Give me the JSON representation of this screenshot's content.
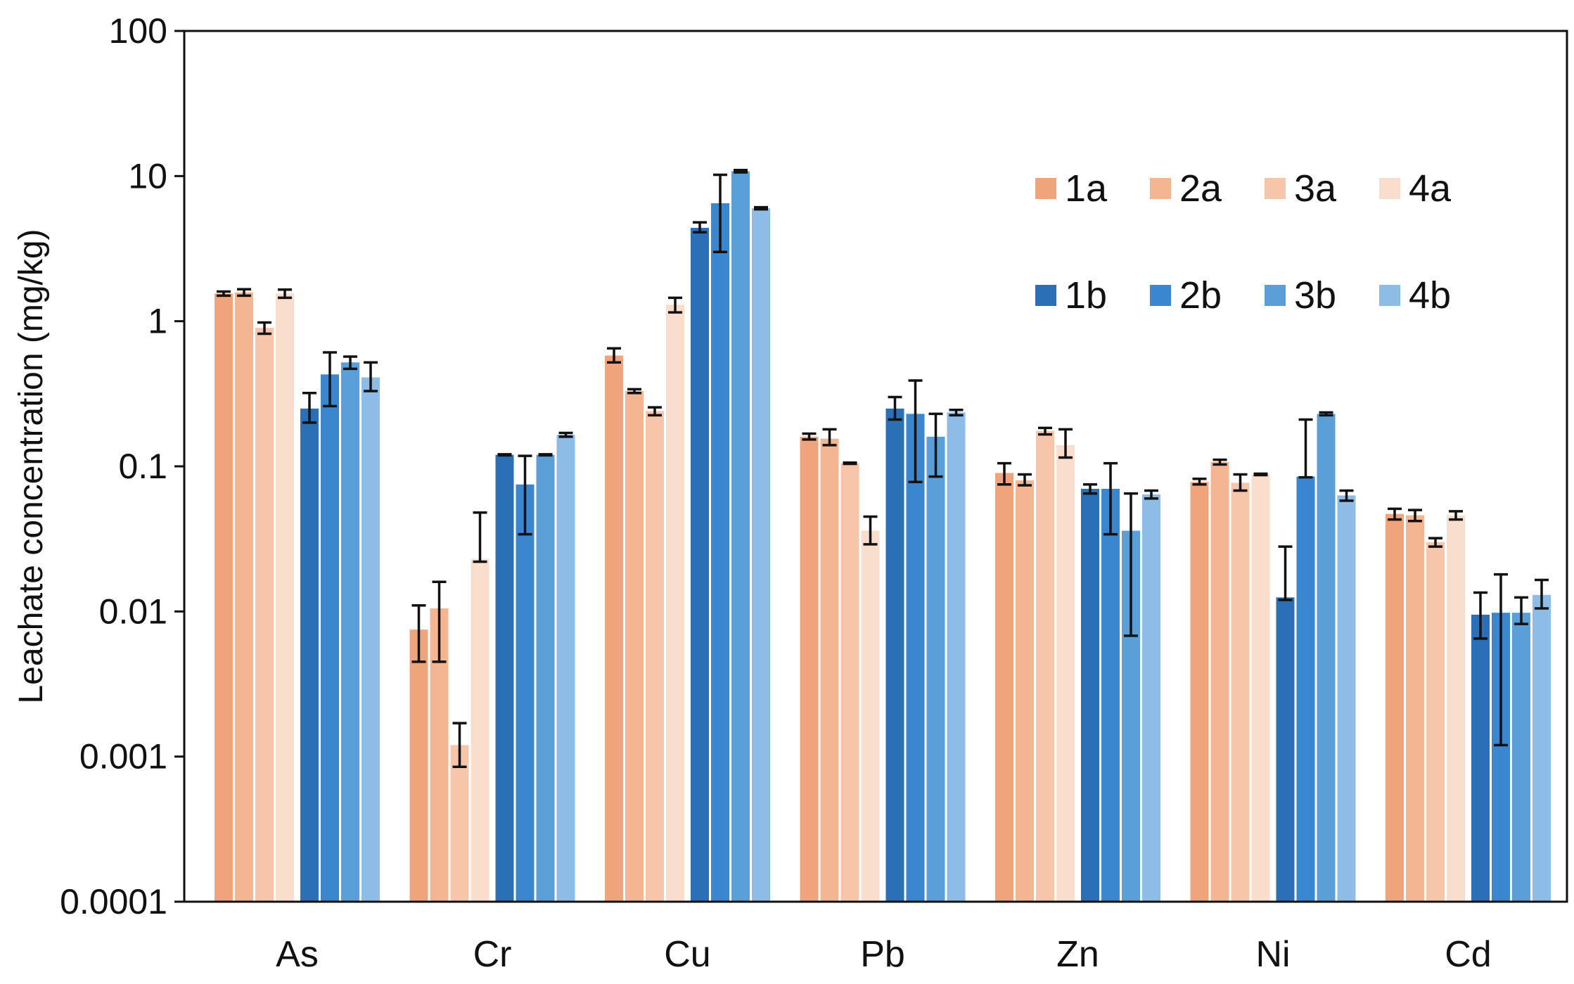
{
  "chart_data": {
    "type": "bar",
    "ylabel": "Leachate concentration  (mg/kg)",
    "y_scale": "log",
    "ylim": [
      0.0001,
      100
    ],
    "y_ticks": [
      "0.0001",
      "0.001",
      "0.01",
      "0.1",
      "1",
      "10",
      "100"
    ],
    "y_tick_values": [
      0.0001,
      0.001,
      0.01,
      0.1,
      1,
      10,
      100
    ],
    "grid": false,
    "legend_position": "top-right",
    "categories": [
      "As",
      "Cr",
      "Cu",
      "Pb",
      "Zn",
      "Ni",
      "Cd"
    ],
    "series": [
      {
        "name": "1a",
        "color": "#f0a47b",
        "values": [
          1.55,
          0.0075,
          0.58,
          0.16,
          0.09,
          0.078,
          0.047
        ],
        "err_low": [
          1.5,
          0.0045,
          0.52,
          0.153,
          0.075,
          0.075,
          0.043
        ],
        "err_high": [
          1.6,
          0.011,
          0.65,
          0.168,
          0.105,
          0.082,
          0.051
        ]
      },
      {
        "name": "2a",
        "color": "#f3b592",
        "values": [
          1.58,
          0.0105,
          0.33,
          0.155,
          0.08,
          0.107,
          0.046
        ],
        "err_low": [
          1.5,
          0.0045,
          0.32,
          0.14,
          0.074,
          0.103,
          0.042
        ],
        "err_high": [
          1.66,
          0.016,
          0.34,
          0.18,
          0.088,
          0.111,
          0.05
        ]
      },
      {
        "name": "3a",
        "color": "#f6c5aa",
        "values": [
          0.9,
          0.0012,
          0.24,
          0.105,
          0.175,
          0.077,
          0.03
        ],
        "err_low": [
          0.82,
          0.00085,
          0.225,
          0.104,
          0.166,
          0.068,
          0.028
        ],
        "err_high": [
          0.98,
          0.0017,
          0.255,
          0.106,
          0.184,
          0.088,
          0.032
        ]
      },
      {
        "name": "4a",
        "color": "#f9ddcd",
        "values": [
          1.55,
          0.023,
          1.3,
          0.036,
          0.14,
          0.088,
          0.046
        ],
        "err_low": [
          1.45,
          0.022,
          1.15,
          0.029,
          0.115,
          0.087,
          0.043
        ],
        "err_high": [
          1.65,
          0.048,
          1.45,
          0.045,
          0.18,
          0.089,
          0.049
        ]
      },
      {
        "name": "1b",
        "color": "#2b70b6",
        "values": [
          0.25,
          0.12,
          4.4,
          0.25,
          0.07,
          0.0125,
          0.0095
        ],
        "err_low": [
          0.2,
          0.119,
          4.1,
          0.21,
          0.065,
          0.012,
          0.0065
        ],
        "err_high": [
          0.32,
          0.121,
          4.8,
          0.3,
          0.075,
          0.028,
          0.0135
        ]
      },
      {
        "name": "2b",
        "color": "#3a86cf",
        "values": [
          0.43,
          0.075,
          6.5,
          0.23,
          0.07,
          0.085,
          0.0098
        ],
        "err_low": [
          0.26,
          0.034,
          3.0,
          0.078,
          0.034,
          0.084,
          0.0012
        ],
        "err_high": [
          0.61,
          0.118,
          10.2,
          0.39,
          0.105,
          0.21,
          0.018
        ]
      },
      {
        "name": "3b",
        "color": "#5b9fd9",
        "values": [
          0.52,
          0.12,
          10.8,
          0.16,
          0.036,
          0.23,
          0.0098
        ],
        "err_low": [
          0.47,
          0.119,
          10.6,
          0.085,
          0.0068,
          0.225,
          0.0082
        ],
        "err_high": [
          0.57,
          0.121,
          11.0,
          0.23,
          0.065,
          0.235,
          0.0125
        ]
      },
      {
        "name": "4b",
        "color": "#8dbde6",
        "values": [
          0.41,
          0.165,
          6.0,
          0.235,
          0.064,
          0.063,
          0.013
        ],
        "err_low": [
          0.33,
          0.16,
          5.9,
          0.225,
          0.06,
          0.058,
          0.0105
        ],
        "err_high": [
          0.52,
          0.17,
          6.1,
          0.245,
          0.068,
          0.068,
          0.0165
        ]
      }
    ]
  }
}
